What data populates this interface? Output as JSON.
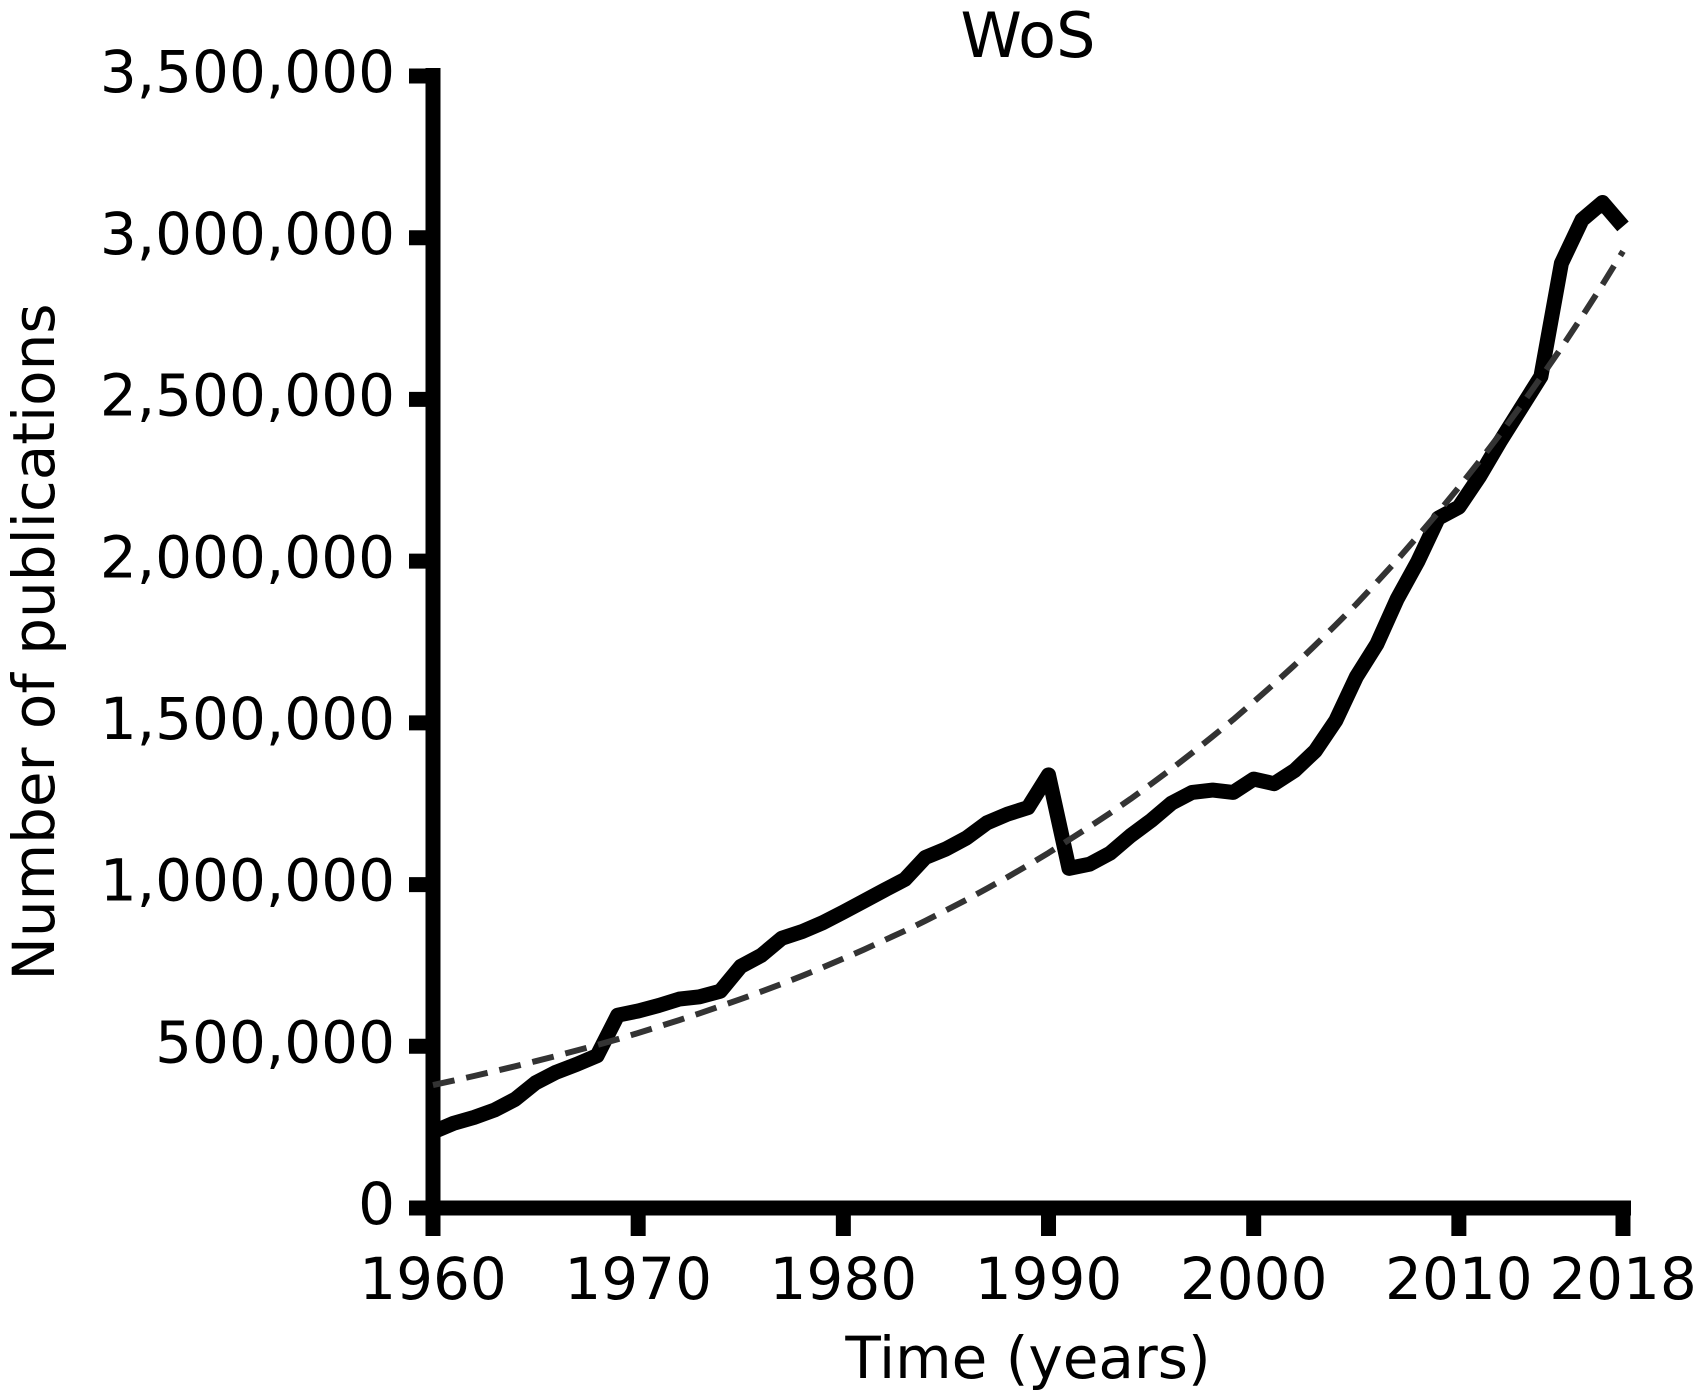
{
  "chart_data": {
    "type": "line",
    "title": "WoS",
    "xlabel": "Time (years)",
    "ylabel": "Number of publications",
    "x": [
      1960,
      1961,
      1962,
      1963,
      1964,
      1965,
      1966,
      1967,
      1968,
      1969,
      1970,
      1971,
      1972,
      1973,
      1974,
      1975,
      1976,
      1977,
      1978,
      1979,
      1980,
      1981,
      1982,
      1983,
      1984,
      1985,
      1986,
      1987,
      1988,
      1989,
      1990,
      1991,
      1992,
      1993,
      1994,
      1995,
      1996,
      1997,
      1998,
      1999,
      2000,
      2001,
      2002,
      2003,
      2004,
      2005,
      2006,
      2007,
      2008,
      2009,
      2010,
      2011,
      2012,
      2013,
      2014,
      2015,
      2016,
      2017,
      2018
    ],
    "series": [
      {
        "color": "#000000",
        "linestyle": "solid",
        "values": [
          235000,
          262000,
          280000,
          303000,
          336000,
          387000,
          420000,
          444000,
          471000,
          596000,
          609000,
          626000,
          646000,
          653000,
          670000,
          747000,
          781000,
          834000,
          855000,
          882000,
          915000,
          949000,
          983000,
          1016000,
          1084000,
          1110000,
          1144000,
          1191000,
          1218000,
          1238000,
          1339000,
          1050000,
          1063000,
          1097000,
          1151000,
          1198000,
          1252000,
          1285000,
          1292000,
          1285000,
          1326000,
          1312000,
          1353000,
          1413000,
          1507000,
          1642000,
          1743000,
          1884000,
          1999000,
          2133000,
          2167000,
          2261000,
          2369000,
          2470000,
          2571000,
          2921000,
          3055000,
          3109000,
          3035000
        ]
      },
      {
        "color": "#333333",
        "linestyle": "dashed",
        "values": [
          380000,
          394000,
          408000,
          423000,
          438000,
          454000,
          470000,
          487000,
          504000,
          522000,
          541000,
          561000,
          581000,
          602000,
          624000,
          646000,
          669000,
          693000,
          718000,
          744000,
          771000,
          799000,
          828000,
          857000,
          888000,
          920000,
          953000,
          988000,
          1023000,
          1060000,
          1098000,
          1138000,
          1179000,
          1221000,
          1265000,
          1311000,
          1358000,
          1407000,
          1458000,
          1510000,
          1565000,
          1621000,
          1679000,
          1740000,
          1803000,
          1867000,
          1935000,
          2004000,
          2077000,
          2151000,
          2229000,
          2309000,
          2392000,
          2478000,
          2568000,
          2660000,
          2756000,
          2855000,
          2958000
        ]
      }
    ],
    "xlim": [
      1960,
      2018
    ],
    "xticks": [
      1960,
      1970,
      1980,
      1990,
      2000,
      2010,
      2018
    ],
    "ylim": [
      0,
      3500000
    ],
    "yticks": [
      0,
      {
        "value": 500000,
        "label": "500,000"
      },
      {
        "value": 1000000,
        "label": "1,000,000"
      },
      {
        "value": 1500000,
        "label": "1,500,000"
      },
      {
        "value": 2000000,
        "label": "2,000,000"
      },
      {
        "value": 2500000,
        "label": "2,500,000"
      },
      {
        "value": 3000000,
        "label": "3,000,000"
      },
      {
        "value": 3500000,
        "label": "3,500,000"
      }
    ],
    "grid": false
  }
}
